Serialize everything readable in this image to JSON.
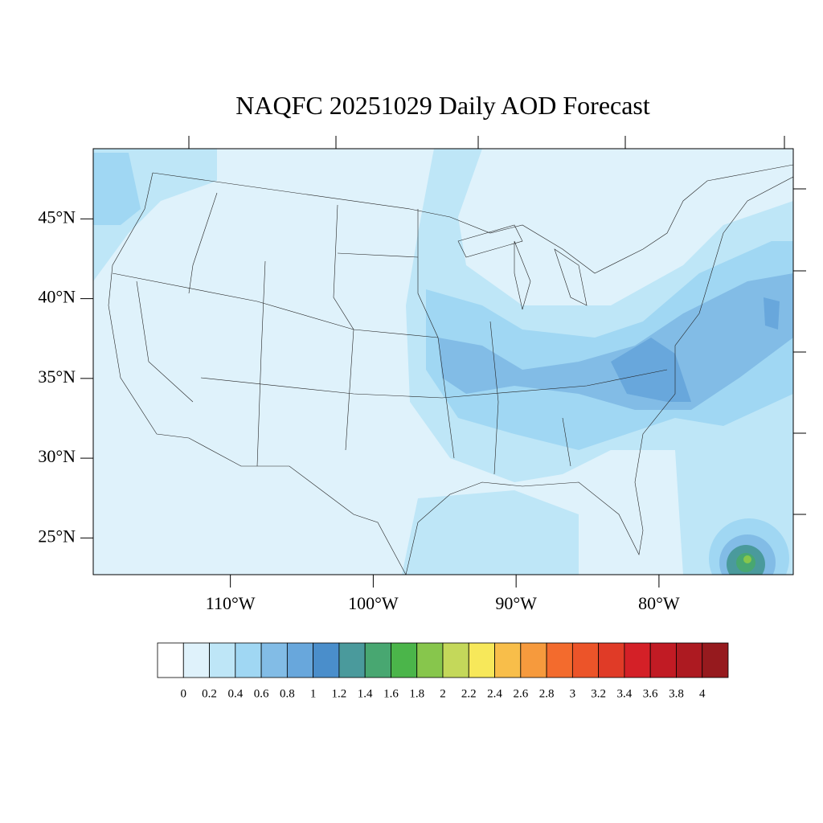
{
  "chart_data": {
    "type": "contour-map",
    "title": "NAQFC 20251029 Daily AOD Forecast",
    "xlim": [
      -119.6,
      -70.6
    ],
    "ylim": [
      22.7,
      49.4
    ],
    "xticks": [
      {
        "value": -110,
        "label": "110°W"
      },
      {
        "value": -100,
        "label": "100°W"
      },
      {
        "value": -90,
        "label": "90°W"
      },
      {
        "value": -80,
        "label": "80°W"
      }
    ],
    "yticks": [
      {
        "value": 45,
        "label": "45°N"
      },
      {
        "value": 40,
        "label": "40°N"
      },
      {
        "value": 35,
        "label": "35°N"
      },
      {
        "value": 30,
        "label": "30°N"
      },
      {
        "value": 25,
        "label": "25°N"
      }
    ],
    "colorbar": {
      "levels": [
        0,
        0.2,
        0.4,
        0.6,
        0.8,
        1,
        1.2,
        1.4,
        1.6,
        1.8,
        2,
        2.2,
        2.4,
        2.6,
        2.8,
        3,
        3.2,
        3.4,
        3.6,
        3.8,
        4
      ],
      "colors": [
        "#ffffff",
        "#dff2fb",
        "#bee6f7",
        "#a0d7f3",
        "#82bce6",
        "#68a7dc",
        "#4a8ecb",
        "#4a9a9c",
        "#48a771",
        "#4bb54a",
        "#87c64c",
        "#c4d85a",
        "#f7e85a",
        "#f8be4a",
        "#f69a3d",
        "#f36b2d",
        "#ec5429",
        "#e03b27",
        "#d42027",
        "#c11b24",
        "#ad1a21",
        "#961a1e"
      ]
    }
  }
}
